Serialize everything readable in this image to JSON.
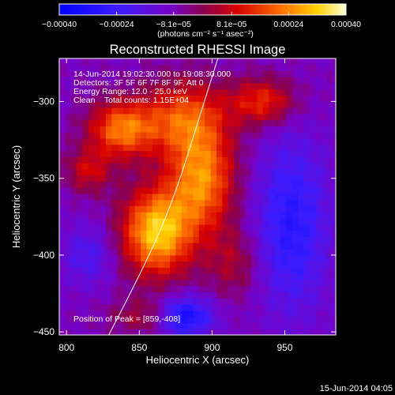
{
  "chart_data": {
    "type": "heatmap",
    "title": "Reconstructed RHESSI Image",
    "xlabel": "Heliocentric X (arcsec)",
    "ylabel": "Heliocentric Y (arcsec)",
    "xlim": [
      795,
      985
    ],
    "ylim": [
      -452,
      -272
    ],
    "x_ticks": [
      {
        "value": 800,
        "label": "800"
      },
      {
        "value": 850,
        "label": "850"
      },
      {
        "value": 900,
        "label": "900"
      },
      {
        "value": 950,
        "label": "950"
      }
    ],
    "y_ticks": [
      {
        "value": -300,
        "label": "−300"
      },
      {
        "value": -350,
        "label": "−350"
      },
      {
        "value": -400,
        "label": "−400"
      },
      {
        "value": -450,
        "label": "−450"
      }
    ],
    "colorbar": {
      "range": [
        -0.0004,
        0.0004
      ],
      "ticks": [
        {
          "value": -0.0004,
          "label": "−0.00040"
        },
        {
          "value": -0.00024,
          "label": "−0.00024"
        },
        {
          "value": -8.1e-05,
          "label": "−8.1e−05"
        },
        {
          "value": 8.1e-05,
          "label": "8.1e−05"
        },
        {
          "value": 0.00024,
          "label": "0.00024"
        },
        {
          "value": 0.0004,
          "label": "0.00040"
        }
      ],
      "unit_label": "(photons cm⁻² s⁻¹ asec⁻²)"
    },
    "info_lines": [
      "14-Jun-2014 19:02:30.000 to 19:08:30.000",
      "Detectors: 3F 5F 6F 7F 8F 9F, Att 0",
      "Energy Range: 12.0 - 25.0 keV",
      "Clean    Total counts: 1.15E+04"
    ],
    "peak_label": "Position of Peak = [859,-408]",
    "peak_position": [
      859,
      -408
    ],
    "limb_curve": [
      [
        829,
        -452
      ],
      [
        855,
        -405
      ],
      [
        875,
        -360
      ],
      [
        893,
        -305
      ],
      [
        904,
        -272
      ]
    ],
    "emission_features": [
      {
        "center": [
          862,
          -385
        ],
        "sigma": [
          17,
          20
        ],
        "amplitude": 0.0004
      },
      {
        "center": [
          893,
          -350
        ],
        "sigma": [
          16,
          24
        ],
        "amplitude": 0.00032
      },
      {
        "center": [
          838,
          -318
        ],
        "sigma": [
          16,
          13
        ],
        "amplitude": 0.0003
      },
      {
        "center": [
          880,
          -310
        ],
        "sigma": [
          20,
          17
        ],
        "amplitude": 0.00024
      },
      {
        "center": [
          935,
          -300
        ],
        "sigma": [
          16,
          11
        ],
        "amplitude": 0.00022
      },
      {
        "center": [
          815,
          -345
        ],
        "sigma": [
          11,
          10
        ],
        "amplitude": 0.00016
      },
      {
        "center": [
          858,
          -440
        ],
        "sigma": [
          18,
          8
        ],
        "amplitude": 0.00014
      },
      {
        "center": [
          915,
          -405
        ],
        "sigma": [
          13,
          16
        ],
        "amplitude": 0.00012
      }
    ],
    "negative_features": [
      {
        "center": [
          880,
          -440
        ],
        "sigma": [
          14,
          9
        ],
        "amplitude": -0.0003
      },
      {
        "center": [
          955,
          -380
        ],
        "sigma": [
          18,
          40
        ],
        "amplitude": -0.0002
      },
      {
        "center": [
          815,
          -400
        ],
        "sigma": [
          13,
          14
        ],
        "amplitude": -0.00012
      }
    ],
    "grid": false
  },
  "footer": {
    "timestamp": "15-Jun-2014 04:05"
  }
}
